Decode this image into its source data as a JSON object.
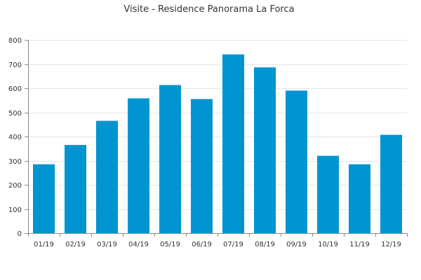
{
  "chart_data": {
    "type": "bar",
    "title": "Visite - Residence Panorama La Forca",
    "categories": [
      "01/19",
      "02/19",
      "03/19",
      "04/19",
      "05/19",
      "06/19",
      "07/19",
      "08/19",
      "09/19",
      "10/19",
      "11/19",
      "12/19"
    ],
    "values": [
      285,
      365,
      465,
      558,
      613,
      555,
      740,
      686,
      590,
      320,
      285,
      407
    ],
    "yticks": [
      "0",
      "100",
      "200",
      "300",
      "400",
      "500",
      "600",
      "700",
      "800"
    ],
    "ylim": [
      0,
      800
    ],
    "grid": true,
    "bar_color": "#0095d1"
  }
}
